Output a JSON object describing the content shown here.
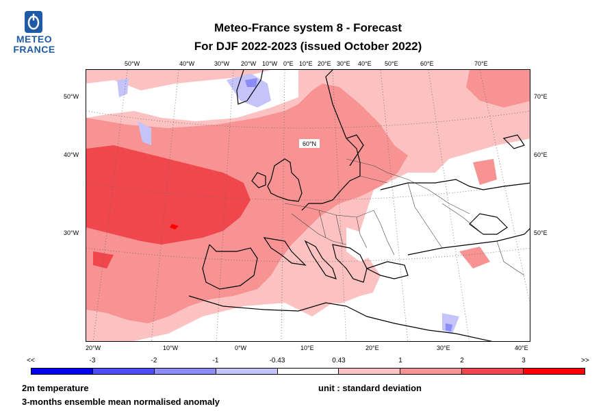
{
  "logo": {
    "line1": "METEO",
    "line2": "FRANCE",
    "color": "#1f5aa6"
  },
  "title": {
    "line1": "Meteo-France system 8  -  Forecast",
    "line2": "For DJF 2022-2023      (issued October 2022)"
  },
  "map": {
    "parallel_label": "60°N",
    "top_labels": [
      "50°W",
      "40°W",
      "30°W",
      "20°W",
      "10°W",
      "0°E",
      "10°E",
      "20°E",
      "30°E",
      "40°E",
      "50°E",
      "60°E",
      "70°E"
    ],
    "left_labels": [
      "50°W",
      "40°W",
      "30°W"
    ],
    "right_labels": [
      "70°E",
      "60°E",
      "50°E"
    ],
    "bottom_labels": [
      "20°W",
      "10°W",
      "0°W",
      "10°E",
      "20°E",
      "30°E",
      "40°E"
    ]
  },
  "legend": {
    "labels": [
      "<<",
      "-3",
      "-2",
      "-1",
      "-0.43",
      "0.43",
      "1",
      "2",
      "3",
      ">>"
    ],
    "colors": [
      "#0000ee",
      "#4d4df2",
      "#8c8cf6",
      "#c4c4fb",
      "#ffffff",
      "#fcc2c2",
      "#f79393",
      "#f0474d",
      "#ff0000"
    ]
  },
  "footer": {
    "variable": "2m temperature",
    "description": "3-months ensemble mean normalised anomaly",
    "unit": "unit : standard deviation"
  }
}
